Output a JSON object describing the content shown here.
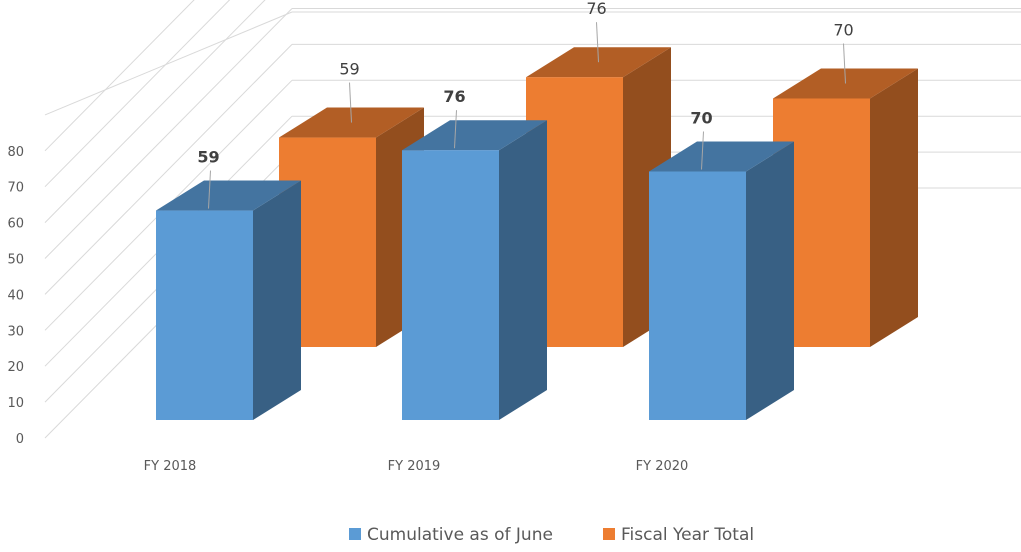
{
  "chart_data": {
    "type": "bar",
    "categories": [
      "FY 2018",
      "FY 2019",
      "FY 2020"
    ],
    "series": [
      {
        "name": "Cumulative as of June",
        "values": [
          59,
          76,
          70
        ],
        "color": "#5B9BD5"
      },
      {
        "name": "Fiscal Year Total",
        "values": [
          59,
          76,
          70
        ],
        "color": "#ED7D31"
      }
    ],
    "yticks": [
      "0",
      "10",
      "20",
      "30",
      "40",
      "50",
      "60",
      "70",
      "80"
    ],
    "ylim": [
      0,
      80
    ],
    "grid": true,
    "legend_position": "bottom",
    "style": "3d-clustered-column"
  }
}
